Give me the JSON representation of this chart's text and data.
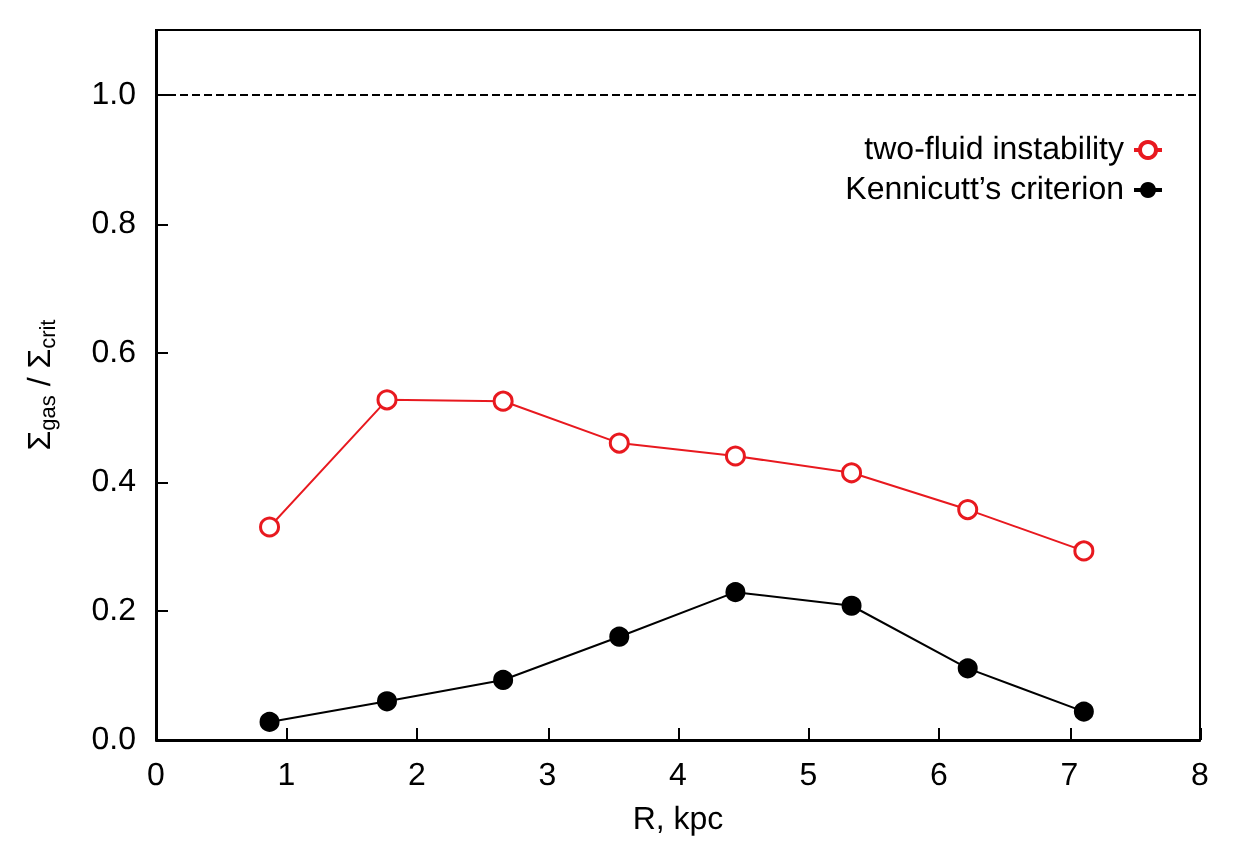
{
  "chart_data": {
    "type": "line",
    "xlabel": "R, kpc",
    "ylabel": "Σ$_{gas}$ / Σ$_{crit}$",
    "x": [
      0.87,
      1.77,
      2.66,
      3.55,
      4.44,
      5.33,
      6.22,
      7.11
    ],
    "series": [
      {
        "name": "two-fluid instability",
        "color": "#e8191f",
        "values": [
          0.33,
          0.527,
          0.525,
          0.46,
          0.44,
          0.414,
          0.357,
          0.293
        ]
      },
      {
        "name": "Kennicutt’s criterion",
        "color": "#000000",
        "values": [
          0.028,
          0.06,
          0.093,
          0.16,
          0.229,
          0.208,
          0.111,
          0.044
        ]
      }
    ],
    "xlim": [
      0,
      8
    ],
    "xticks": [
      0,
      1,
      2,
      3,
      4,
      5,
      6,
      7,
      8
    ],
    "ylim": [
      0,
      1.1
    ],
    "yticks": [
      {
        "value": 0,
        "label": "0.0"
      },
      {
        "value": 0.2,
        "label": "0.2"
      },
      {
        "value": 0.4,
        "label": "0.4"
      },
      {
        "value": 0.6,
        "label": "0.6"
      },
      {
        "value": 0.8,
        "label": "0.8"
      },
      {
        "value": 1,
        "label": "1.0"
      }
    ],
    "ref_lines": [
      {
        "axis": "y",
        "value": 1,
        "color": "#000000",
        "line_style": "dashed"
      }
    ],
    "grid": false,
    "legend": "top right",
    "marker": "circle",
    "line_style": "solid"
  }
}
